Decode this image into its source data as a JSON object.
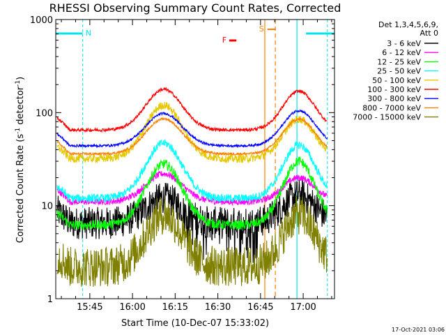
{
  "chart_data": {
    "type": "line",
    "title": "RHESSI Observing Summary Count Rates, Corrected",
    "xlabel": "Start Time (10-Dec-07 15:33:02)",
    "ylabel_main": "Corrected Count Rate (s",
    "ylabel_sup1": "-1",
    "ylabel_mid": " detector",
    "ylabel_sup2": "-1",
    "ylabel_end": ")",
    "footer_date": "17-Oct-2021 03:06",
    "y_scale": "log",
    "ylim": [
      1,
      1000
    ],
    "x_range_minutes": [
      "15:33:02",
      "17:11:00"
    ],
    "x_ticks": [
      "15:45",
      "16:00",
      "16:15",
      "16:30",
      "16:45",
      "17:00"
    ],
    "x_tick_minutes": [
      705,
      720,
      735,
      750,
      765,
      780
    ],
    "y_ticks": [
      "1",
      "10",
      "100",
      "1000"
    ],
    "y_tick_values": [
      1,
      10,
      100,
      1000
    ],
    "legend_header": [
      "Det 1,3,4,5,6,9,",
      "Att 0"
    ],
    "series": [
      {
        "name": "3 - 6 keV",
        "color": "#000000",
        "base": 6.5,
        "peak1": 12,
        "peak2": 13,
        "noise": 0.4,
        "gap": true
      },
      {
        "name": "6 - 12 keV",
        "color": "#ff00ff",
        "base": 11,
        "peak1": 22,
        "peak2": 20,
        "noise": 0.08,
        "gap": false
      },
      {
        "name": "12 - 25 keV",
        "color": "#00ff00",
        "base": 6.2,
        "peak1": 28,
        "peak2": 30,
        "noise": 0.12,
        "gap": false
      },
      {
        "name": "25 - 50 keV",
        "color": "#00ffff",
        "base": 12,
        "peak1": 47,
        "peak2": 45,
        "noise": 0.1,
        "gap": false
      },
      {
        "name": "50 - 100 keV",
        "color": "#e6c800",
        "base": 32,
        "peak1": 120,
        "peak2": 85,
        "noise": 0.1,
        "gap": false
      },
      {
        "name": "100 - 300 keV",
        "color": "#ff0000",
        "base": 65,
        "peak1": 178,
        "peak2": 170,
        "noise": 0.04,
        "gap": false
      },
      {
        "name": "300 - 800 keV",
        "color": "#0000ff",
        "base": 44,
        "peak1": 98,
        "peak2": 105,
        "noise": 0.03,
        "gap": false
      },
      {
        "name": "800 - 7000 keV",
        "color": "#ff8000",
        "base": 36,
        "peak1": 86,
        "peak2": 85,
        "noise": 0.03,
        "gap": false
      },
      {
        "name": "7000 - 15000 keV",
        "color": "#808000",
        "base": 2.2,
        "peak1": 8,
        "peak2": 8,
        "noise": 0.5,
        "gap": false
      }
    ],
    "annotations": {
      "N_label": "N",
      "S_label": "S",
      "F_label": "F"
    },
    "colors": {
      "axes": "#000000",
      "night": "#00e5ee",
      "saa": "#ff8000",
      "flare": "#ff0000"
    }
  }
}
